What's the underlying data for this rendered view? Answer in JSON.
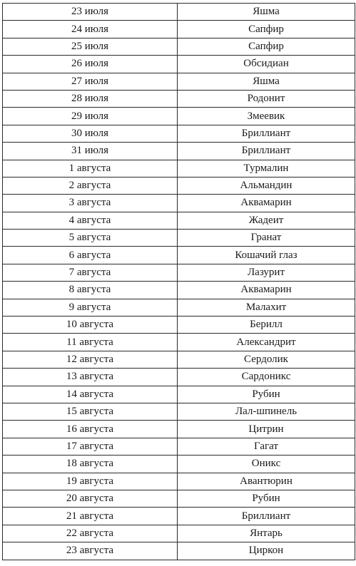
{
  "rows": [
    {
      "date": "23 июля",
      "stone": "Яшма"
    },
    {
      "date": "24 июля",
      "stone": "Сапфир"
    },
    {
      "date": "25 июля",
      "stone": "Сапфир"
    },
    {
      "date": "26 июля",
      "stone": "Обсидиан"
    },
    {
      "date": "27 июля",
      "stone": "Яшма"
    },
    {
      "date": "28 июля",
      "stone": "Родонит"
    },
    {
      "date": "29 июля",
      "stone": "Змеевик"
    },
    {
      "date": "30 июля",
      "stone": "Бриллиант"
    },
    {
      "date": "31 июля",
      "stone": "Бриллиант"
    },
    {
      "date": "1 августа",
      "stone": "Турмалин"
    },
    {
      "date": "2 августа",
      "stone": "Альмандин"
    },
    {
      "date": "3 августа",
      "stone": "Аквамарин"
    },
    {
      "date": "4 августа",
      "stone": "Жадеит"
    },
    {
      "date": "5 августа",
      "stone": "Гранат"
    },
    {
      "date": "6 августа",
      "stone": "Кошачий глаз"
    },
    {
      "date": "7 августа",
      "stone": "Лазурит"
    },
    {
      "date": "8 августа",
      "stone": "Аквамарин"
    },
    {
      "date": "9 августа",
      "stone": "Малахит"
    },
    {
      "date": "10 августа",
      "stone": "Берилл"
    },
    {
      "date": "11 августа",
      "stone": "Александрит"
    },
    {
      "date": "12 августа",
      "stone": "Сердолик"
    },
    {
      "date": "13 августа",
      "stone": "Сардоникс"
    },
    {
      "date": "14 августа",
      "stone": "Рубин"
    },
    {
      "date": "15 августа",
      "stone": "Лал-шпинель"
    },
    {
      "date": "16 августа",
      "stone": "Цитрин"
    },
    {
      "date": "17 августа",
      "stone": "Гагат"
    },
    {
      "date": "18 августа",
      "stone": "Оникс"
    },
    {
      "date": "19 августа",
      "stone": "Авантюрин"
    },
    {
      "date": "20 августа",
      "stone": "Рубин"
    },
    {
      "date": "21 августа",
      "stone": "Бриллиант"
    },
    {
      "date": "22 августа",
      "stone": "Янтарь"
    },
    {
      "date": "23 августа",
      "stone": "Циркон"
    }
  ]
}
